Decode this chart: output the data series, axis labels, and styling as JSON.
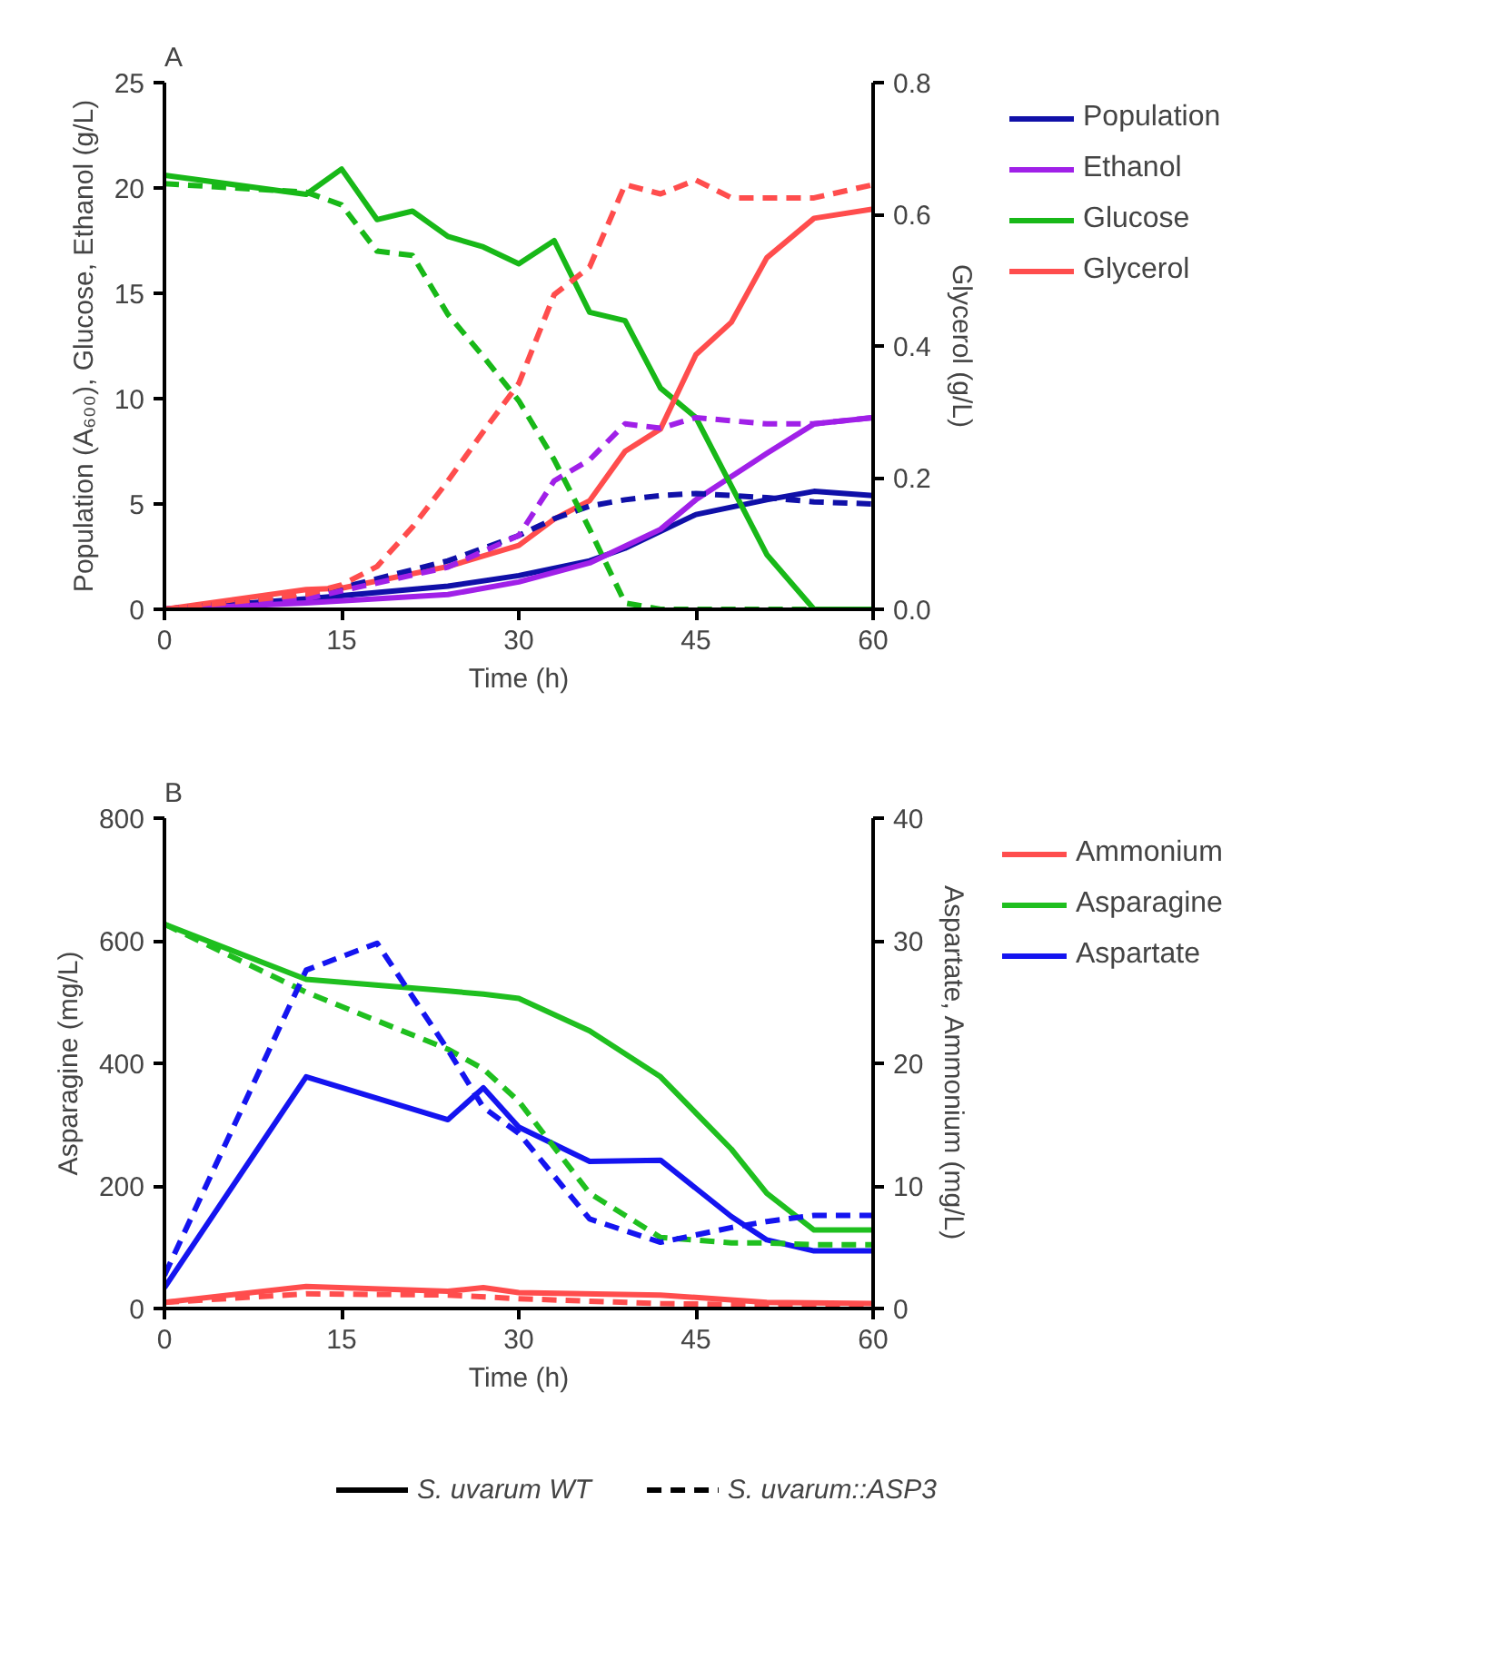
{
  "chart_data": [
    {
      "type": "line",
      "title": "A",
      "xlabel": "Time (h)",
      "ylabel": "Population (A₆₀₀), Glucose, Ethanol (g/L)",
      "y2label": "Glycerol (g/L)",
      "xlim": [
        0,
        60
      ],
      "xticks": [
        0,
        15,
        30,
        45,
        60
      ],
      "ylim": [
        0,
        25
      ],
      "yticks": [
        0,
        5,
        10,
        15,
        20,
        25
      ],
      "y2lim": [
        0,
        0.8
      ],
      "y2ticks": [
        {
          "value": 0,
          "label": "0.0"
        },
        0.2,
        0.4,
        0.6,
        0.8
      ],
      "grid": false,
      "legend": "right",
      "marker": "none",
      "series": [
        {
          "name": "Population",
          "color": "#1010a8",
          "line_style": "solid",
          "x": [
            0,
            12,
            24,
            30,
            36,
            39,
            45,
            51,
            55,
            60
          ],
          "values": [
            0,
            0.5,
            1.1,
            1.6,
            2.3,
            2.9,
            4.5,
            5.2,
            5.6,
            5.4
          ]
        },
        {
          "name": "Ethanol",
          "color": "#a020e8",
          "line_style": "solid",
          "x": [
            0,
            12,
            24,
            30,
            36,
            42,
            45,
            51,
            55,
            60
          ],
          "values": [
            0,
            0.3,
            0.7,
            1.3,
            2.2,
            3.8,
            5.2,
            7.4,
            8.8,
            9.1
          ]
        },
        {
          "name": "Glucose",
          "color": "#18b818",
          "line_style": "solid",
          "x": [
            0,
            12,
            15,
            18,
            21,
            24,
            27,
            30,
            33,
            36,
            39,
            42,
            45,
            51,
            55,
            60
          ],
          "values": [
            20.6,
            19.7,
            20.9,
            18.5,
            18.9,
            17.7,
            17.2,
            16.4,
            17.5,
            14.1,
            13.7,
            10.5,
            9.1,
            2.6,
            0,
            0
          ]
        },
        {
          "name": "Glycerol",
          "color": "#ff4d4d",
          "line_style": "solid",
          "axis": "y2",
          "x": [
            0,
            12,
            15,
            24,
            30,
            33,
            36,
            39,
            42,
            45,
            48,
            51,
            55,
            60
          ],
          "values": [
            0,
            0.03,
            0.032,
            0.065,
            0.097,
            0.137,
            0.165,
            0.24,
            0.274,
            0.387,
            0.436,
            0.534,
            0.594,
            0.608
          ]
        },
        {
          "color": "#1010a8",
          "line_style": "dashed",
          "x": [
            0,
            12,
            24,
            30,
            33,
            36,
            39,
            42,
            45,
            51,
            55,
            60
          ],
          "values": [
            0,
            0.6,
            2.3,
            3.5,
            4.3,
            4.9,
            5.2,
            5.4,
            5.5,
            5.3,
            5.1,
            5.0
          ]
        },
        {
          "color": "#a020e8",
          "line_style": "dashed",
          "x": [
            0,
            12,
            24,
            30,
            33,
            36,
            39,
            42,
            45,
            51,
            55,
            60
          ],
          "values": [
            0,
            0.5,
            2.0,
            3.5,
            6.1,
            7.1,
            8.8,
            8.6,
            9.1,
            8.8,
            8.8,
            9.1
          ]
        },
        {
          "color": "#18b818",
          "line_style": "dashed",
          "x": [
            0,
            12,
            15,
            18,
            21,
            24,
            27,
            30,
            33,
            36,
            39,
            42,
            60
          ],
          "values": [
            20.2,
            19.8,
            19.2,
            17.0,
            16.8,
            14.0,
            12.0,
            9.9,
            7.1,
            3.8,
            0.3,
            0,
            0
          ]
        },
        {
          "color": "#ff4d4d",
          "line_style": "dashed",
          "axis": "y2",
          "x": [
            0,
            12,
            15,
            18,
            21,
            24,
            27,
            30,
            33,
            36,
            39,
            42,
            45,
            48,
            51,
            55,
            60
          ],
          "values": [
            0,
            0.023,
            0.037,
            0.065,
            0.125,
            0.195,
            0.27,
            0.343,
            0.478,
            0.52,
            0.645,
            0.631,
            0.652,
            0.625,
            0.625,
            0.625,
            0.645
          ]
        }
      ]
    },
    {
      "type": "line",
      "title": "B",
      "xlabel": "Time (h)",
      "ylabel": "Asparagine (mg/L)",
      "y2label": "Aspartate, Ammonium (mg/L)",
      "xlim": [
        0,
        60
      ],
      "xticks": [
        0,
        15,
        30,
        45,
        60
      ],
      "ylim": [
        0,
        800
      ],
      "yticks": [
        0,
        200,
        400,
        600,
        800
      ],
      "y2lim": [
        0,
        40
      ],
      "y2ticks": [
        0,
        10,
        20,
        30,
        40
      ],
      "grid": false,
      "legend": "right",
      "marker": "none",
      "annotations": [
        "S. uvarum WT",
        "S. uvarum::ASP3"
      ],
      "series": [
        {
          "name": "Ammonium",
          "color": "#ff4d4d",
          "line_style": "solid",
          "axis": "y2",
          "x": [
            0,
            12,
            24,
            27,
            30,
            42,
            51,
            60
          ],
          "values": [
            0.5,
            1.8,
            1.4,
            1.7,
            1.3,
            1.1,
            0.5,
            0.4
          ]
        },
        {
          "name": "Asparagine",
          "color": "#1fbf1f",
          "line_style": "solid",
          "x": [
            0,
            12,
            24,
            27,
            30,
            36,
            42,
            48,
            51,
            55,
            60
          ],
          "values": [
            627,
            537,
            518,
            513,
            506,
            453,
            378,
            260,
            188,
            128,
            128
          ]
        },
        {
          "name": "Aspartate",
          "color": "#1414f0",
          "line_style": "solid",
          "axis": "y2",
          "x": [
            0,
            12,
            24,
            27,
            30,
            36,
            42,
            48,
            51,
            55,
            60
          ],
          "values": [
            1.7,
            18.9,
            15.4,
            18.0,
            14.8,
            12.0,
            12.1,
            7.5,
            5.6,
            4.7,
            4.7
          ]
        },
        {
          "color": "#ff4d4d",
          "line_style": "dashed",
          "axis": "y2",
          "x": [
            0,
            12,
            24,
            30,
            42,
            51,
            60
          ],
          "values": [
            0.5,
            1.2,
            1.1,
            0.8,
            0.4,
            0.3,
            0.3
          ]
        },
        {
          "color": "#1fbf1f",
          "line_style": "dashed",
          "x": [
            0,
            12,
            24,
            27,
            30,
            36,
            42,
            48,
            51,
            55,
            60
          ],
          "values": [
            627,
            516,
            423,
            391,
            338,
            188,
            116,
            107,
            107,
            104,
            104
          ]
        },
        {
          "color": "#1414f0",
          "line_style": "dashed",
          "axis": "y2",
          "x": [
            0,
            12,
            18,
            24,
            27,
            30,
            36,
            42,
            48,
            51,
            55,
            60
          ],
          "values": [
            2.7,
            27.6,
            29.8,
            21.1,
            16.4,
            14.3,
            7.3,
            5.4,
            6.6,
            7.1,
            7.6,
            7.6
          ]
        }
      ]
    }
  ]
}
